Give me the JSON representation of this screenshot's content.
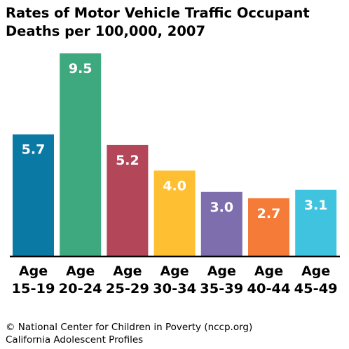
{
  "chart_data": {
    "type": "bar",
    "title_lines": [
      "Rates of Motor Vehicle Traffic Occupant",
      "Deaths per 100,000, 2007"
    ],
    "categories": [
      [
        "Age",
        "15-19"
      ],
      [
        "Age",
        "20-24"
      ],
      [
        "Age",
        "25-29"
      ],
      [
        "Age",
        "30-34"
      ],
      [
        "Age",
        "35-39"
      ],
      [
        "Age",
        "40-44"
      ],
      [
        "Age",
        "45-49"
      ]
    ],
    "values": [
      5.7,
      9.5,
      5.2,
      4.0,
      3.0,
      2.7,
      3.1
    ],
    "value_labels": [
      "5.7",
      "9.5",
      "5.2",
      "4.0",
      "3.0",
      "2.7",
      "3.1"
    ],
    "colors": [
      "#0a7aa4",
      "#3ea87f",
      "#b4465a",
      "#fec032",
      "#7e6eae",
      "#f57c38",
      "#3fc3de"
    ],
    "ylim": [
      0,
      10
    ],
    "xlabel": "",
    "ylabel": "",
    "grid": false
  },
  "footer": {
    "line1": "© National Center for Children in Poverty (nccp.org)",
    "line2": "California Adolescent Profiles"
  }
}
